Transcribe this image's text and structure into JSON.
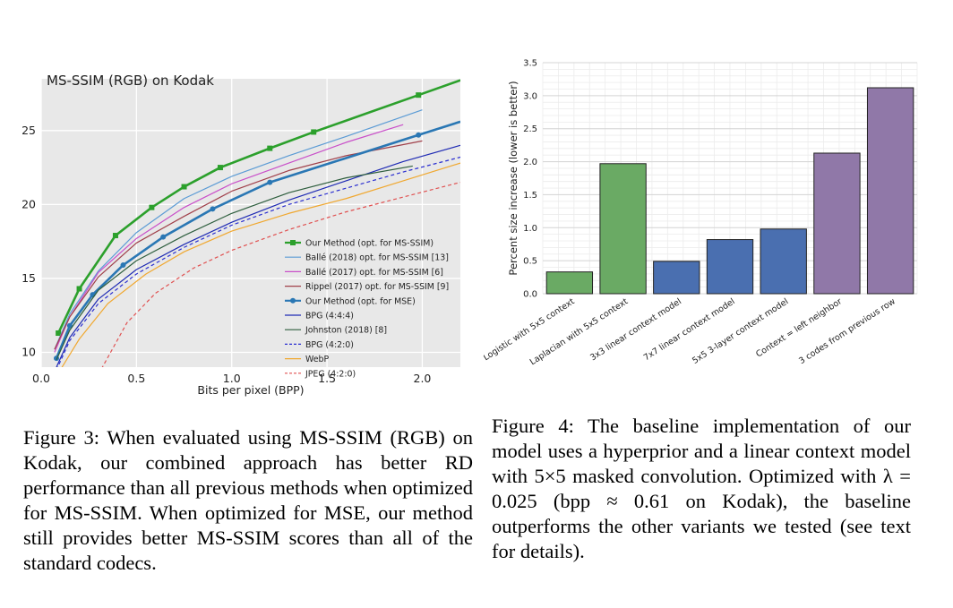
{
  "figure3": {
    "caption": "Figure 3: When evaluated using MS-SSIM (RGB) on Kodak, our combined approach has better RD performance than all previous methods when optimized for MS-SSIM. When optimized for MSE, our method still provides better MS-SSIM scores than all of the standard codecs."
  },
  "figure4": {
    "caption": "Figure 4: The baseline implementation of our model uses a hyperprior and a linear context model with 5×5 masked convolution. Optimized with λ = 0.025 (bpp ≈ 0.61 on Kodak), the baseline outperforms the other variants we tested (see text for details)."
  },
  "chart_data": [
    {
      "type": "line",
      "title": "MS-SSIM (RGB) on Kodak",
      "xlabel": "Bits per pixel (BPP)",
      "ylabel": "",
      "xlim": [
        0,
        2.2
      ],
      "ylim": [
        9,
        28.5
      ],
      "xticks": [
        0.0,
        0.5,
        1.0,
        1.5,
        2.0
      ],
      "xtick_labels": [
        "0.0",
        "0.5",
        "1.0",
        "1.5",
        "2.0"
      ],
      "yticks": [
        10,
        15,
        20,
        25
      ],
      "ytick_labels": [
        "10",
        "15",
        "20",
        "25"
      ],
      "grid": true,
      "legend_position": "lower-right",
      "series": [
        {
          "name": "Our Method (opt. for MS-SSIM)",
          "color": "#2ca02c",
          "style": "solid",
          "marker": "square",
          "x": [
            0.09,
            0.2,
            0.39,
            0.58,
            0.75,
            0.94,
            1.2,
            1.43,
            1.98,
            2.2
          ],
          "y": [
            11.3,
            14.3,
            17.9,
            19.8,
            21.2,
            22.5,
            23.8,
            24.9,
            27.4,
            28.4
          ]
        },
        {
          "name": "Ballé (2018) opt. for MS-SSIM [13]",
          "color": "#5b9bd5",
          "style": "solid",
          "marker": "none",
          "x": [
            0.07,
            0.15,
            0.3,
            0.5,
            0.75,
            1.0,
            1.3,
            1.6,
            2.0
          ],
          "y": [
            10.2,
            12.6,
            15.5,
            18.1,
            20.4,
            21.9,
            23.3,
            24.6,
            26.4
          ]
        },
        {
          "name": "Ballé (2017) opt. for MS-SSIM [6]",
          "color": "#c94fc9",
          "style": "solid",
          "marker": "none",
          "x": [
            0.07,
            0.15,
            0.3,
            0.5,
            0.75,
            1.0,
            1.3,
            1.6,
            1.9
          ],
          "y": [
            10.0,
            12.4,
            15.4,
            17.7,
            19.8,
            21.4,
            22.8,
            24.2,
            25.4
          ]
        },
        {
          "name": "Rippel (2017) opt. for MS-SSIM [9]",
          "color": "#a0404a",
          "style": "solid",
          "marker": "none",
          "x": [
            0.07,
            0.15,
            0.3,
            0.5,
            0.75,
            1.0,
            1.3,
            1.6,
            2.0
          ],
          "y": [
            10.2,
            12.4,
            15.1,
            17.4,
            19.2,
            20.9,
            22.3,
            23.3,
            24.3
          ]
        },
        {
          "name": "Our Method (opt. for MSE)",
          "color": "#2a77b4",
          "style": "solid",
          "marker": "circle",
          "x": [
            0.08,
            0.15,
            0.27,
            0.43,
            0.64,
            0.9,
            1.2,
            1.98,
            2.2
          ],
          "y": [
            9.6,
            11.8,
            13.9,
            15.9,
            17.8,
            19.7,
            21.5,
            24.7,
            25.6
          ]
        },
        {
          "name": "BPG (4:4:4)",
          "color": "#1f2bb4",
          "style": "solid",
          "marker": "none",
          "x": [
            0.08,
            0.15,
            0.3,
            0.5,
            0.75,
            1.0,
            1.3,
            1.6,
            1.9,
            2.2
          ],
          "y": [
            9.0,
            11.0,
            13.6,
            15.6,
            17.3,
            18.8,
            20.3,
            21.6,
            22.9,
            24.0
          ]
        },
        {
          "name": "Johnston (2018) [8]",
          "color": "#2e5e3e",
          "style": "solid",
          "marker": "none",
          "x": [
            0.08,
            0.15,
            0.3,
            0.5,
            0.75,
            1.0,
            1.3,
            1.6,
            1.95
          ],
          "y": [
            9.5,
            11.5,
            14.2,
            16.2,
            17.9,
            19.4,
            20.8,
            21.8,
            22.6
          ]
        },
        {
          "name": "BPG (4:2:0)",
          "color": "#2b2fd0",
          "style": "dashed",
          "marker": "none",
          "x": [
            0.08,
            0.15,
            0.3,
            0.5,
            0.75,
            1.0,
            1.3,
            1.6,
            1.9,
            2.2
          ],
          "y": [
            8.8,
            10.8,
            13.3,
            15.3,
            17.1,
            18.6,
            20.0,
            21.1,
            22.2,
            23.2
          ]
        },
        {
          "name": "WebP",
          "color": "#f0a830",
          "style": "solid",
          "marker": "none",
          "x": [
            0.1,
            0.2,
            0.35,
            0.55,
            0.75,
            1.0,
            1.3,
            1.6,
            1.9,
            2.2
          ],
          "y": [
            8.8,
            10.9,
            13.3,
            15.3,
            16.8,
            18.2,
            19.4,
            20.4,
            21.6,
            22.8
          ]
        },
        {
          "name": "JPEG (4:2:0)",
          "color": "#e05050",
          "style": "dashed",
          "marker": "none",
          "x": [
            0.3,
            0.45,
            0.6,
            0.8,
            1.0,
            1.3,
            1.6,
            1.9,
            2.2
          ],
          "y": [
            8.5,
            12.0,
            14.0,
            15.7,
            16.9,
            18.3,
            19.5,
            20.5,
            21.5
          ]
        }
      ]
    },
    {
      "type": "bar",
      "ylabel": "Percent size increase (lower is better)",
      "ylim": [
        0,
        3.5
      ],
      "yticks": [
        0.0,
        0.5,
        1.0,
        1.5,
        2.0,
        2.5,
        3.0,
        3.5
      ],
      "ytick_labels": [
        "0.0",
        "0.5",
        "1.0",
        "1.5",
        "2.0",
        "2.5",
        "3.0",
        "3.5"
      ],
      "grid": true,
      "categories": [
        "Logistic with 5x5 context",
        "Laplacian with 5x5 context",
        "3x3 linear context model",
        "7x7 linear context model",
        "5x5 3-layer context model",
        "Context = left neighbor",
        "3 codes from previous row"
      ],
      "values": [
        0.33,
        1.97,
        0.49,
        0.82,
        0.98,
        2.13,
        3.12
      ],
      "colors": [
        "#6aaa64",
        "#6aaa64",
        "#4a6fb0",
        "#4a6fb0",
        "#4a6fb0",
        "#9078a8",
        "#9078a8"
      ]
    }
  ]
}
